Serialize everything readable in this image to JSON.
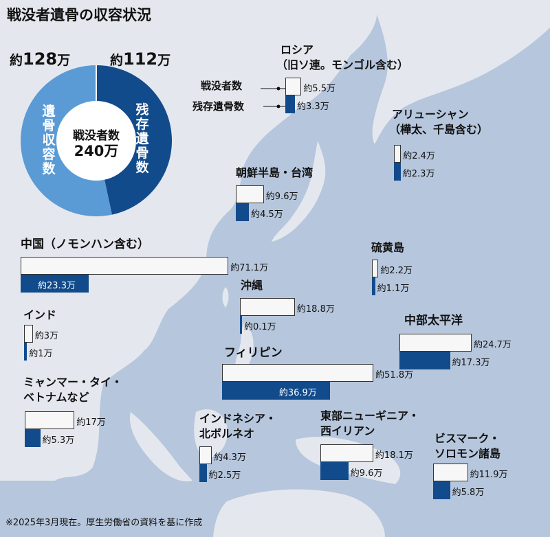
{
  "chart_data": {
    "type": "bar",
    "title": "戦没者遺骨の収容状況",
    "note": "※2025年3月現在。厚生労働省の資料を基に作成",
    "donut": {
      "prefix": "約",
      "unit": "万",
      "collected_num": "128",
      "remaining_num": "112",
      "collected_label": "遺骨収容数",
      "remaining_label": "残存遺骨数",
      "center_label": "戦没者数",
      "center_value": "240万",
      "collected_value": 128,
      "remaining_value": 112,
      "total_value": 240,
      "colors": {
        "collected": "#5b9bd5",
        "remaining": "#124b8c"
      }
    },
    "legend": {
      "deaths": "戦没者数",
      "remaining": "残存遺骨数"
    },
    "colors": {
      "deaths": "#f7f7f7",
      "remaining": "#124b8c"
    },
    "regions": [
      {
        "name": "ロシア",
        "sub": "（旧ソ連。モンゴル含む）",
        "deaths": 5.5,
        "remaining": 3.3,
        "deaths_label": "約5.5万",
        "remaining_label": "約3.3万"
      },
      {
        "name": "アリューシャン",
        "sub": "（樺太、千島含む）",
        "deaths": 2.4,
        "remaining": 2.3,
        "deaths_label": "約2.4万",
        "remaining_label": "約2.3万"
      },
      {
        "name": "朝鮮半島・台湾",
        "deaths": 9.6,
        "remaining": 4.5,
        "deaths_label": "約9.6万",
        "remaining_label": "約4.5万"
      },
      {
        "name": "中国（ノモンハン含む）",
        "deaths": 71.1,
        "remaining": 23.3,
        "deaths_label": "約71.1万",
        "remaining_label": "約23.3万"
      },
      {
        "name": "硫黄島",
        "deaths": 2.2,
        "remaining": 1.1,
        "deaths_label": "約2.2万",
        "remaining_label": "約1.1万"
      },
      {
        "name": "沖縄",
        "deaths": 18.8,
        "remaining": 0.1,
        "deaths_label": "約18.8万",
        "remaining_label": "約0.1万"
      },
      {
        "name": "インド",
        "deaths": 3,
        "remaining": 1,
        "deaths_label": "約3万",
        "remaining_label": "約1万"
      },
      {
        "name": "中部太平洋",
        "deaths": 24.7,
        "remaining": 17.3,
        "deaths_label": "約24.7万",
        "remaining_label": "約17.3万"
      },
      {
        "name": "フィリピン",
        "deaths": 51.8,
        "remaining": 36.9,
        "deaths_label": "約51.8万",
        "remaining_label": "約36.9万"
      },
      {
        "name": "ミャンマー・タイ・",
        "sub": "ベトナムなど",
        "deaths": 17,
        "remaining": 5.3,
        "deaths_label": "約17万",
        "remaining_label": "約5.3万"
      },
      {
        "name": "インドネシア・",
        "sub": "北ボルネオ",
        "deaths": 4.3,
        "remaining": 2.5,
        "deaths_label": "約4.3万",
        "remaining_label": "約2.5万"
      },
      {
        "name": "東部ニューギニア・",
        "sub": "西イリアン",
        "deaths": 18.1,
        "remaining": 9.6,
        "deaths_label": "約18.1万",
        "remaining_label": "約9.6万"
      },
      {
        "name": "ビスマーク・",
        "sub": "ソロモン諸島",
        "deaths": 11.9,
        "remaining": 5.8,
        "deaths_label": "約11.9万",
        "remaining_label": "約5.8万"
      }
    ]
  }
}
